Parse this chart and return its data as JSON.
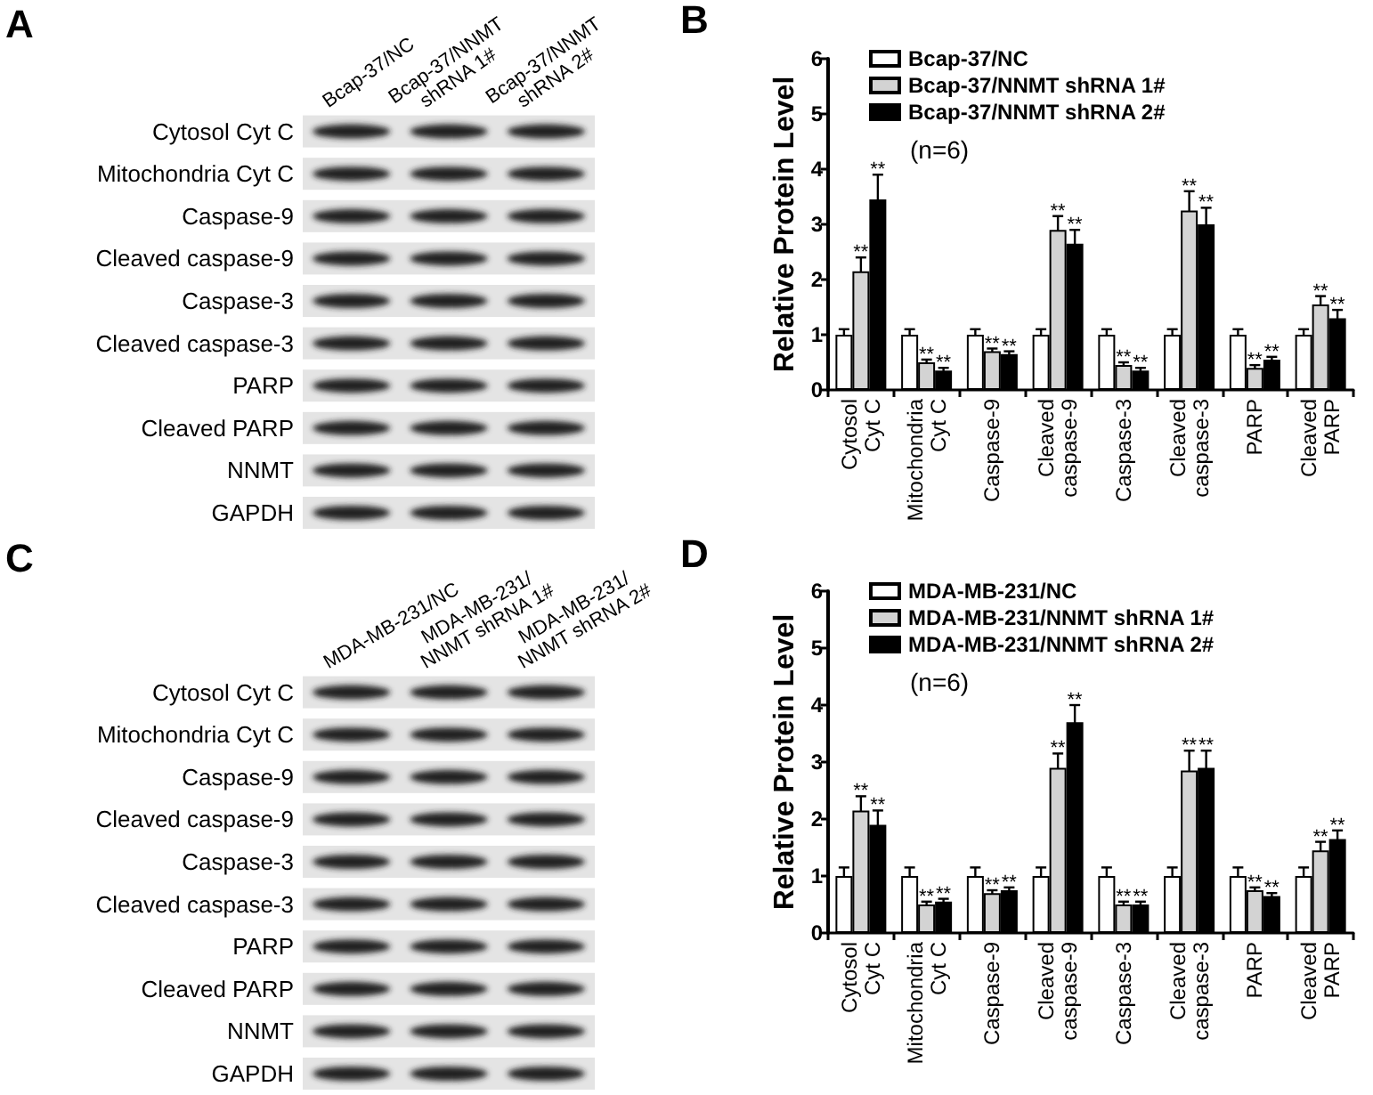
{
  "chart_data": [
    {
      "type": "other",
      "title": "A",
      "categories": [
        "Bcap-37/NC",
        "Bcap-37/NNMT shRNA 1#",
        "Bcap-37/NNMT shRNA 2#"
      ],
      "y_categories": [
        "Cytosol Cyt C",
        "Mitochondria Cyt C",
        "Caspase-9",
        "Cleaved caspase-9",
        "Caspase-3",
        "Cleaved caspase-3",
        "PARP",
        "Cleaved PARP",
        "NNMT",
        "GAPDH"
      ]
    },
    {
      "type": "bar",
      "title": "B",
      "ylabel": "Relative Protein Level",
      "categories": [
        "Cytosol Cyt C",
        "Mitochondria Cyt C",
        "Caspase-9",
        "Cleaved caspase-9",
        "Caspase-3",
        "Cleaved caspase-3",
        "PARP",
        "Cleaved PARP"
      ],
      "series": [
        {
          "name": "Bcap-37/NC",
          "color": "#ffffff",
          "values": [
            1,
            1,
            1,
            1,
            1,
            1,
            1,
            1
          ],
          "errors": [
            0.1,
            0.1,
            0.1,
            0.1,
            0.1,
            0.1,
            0.1,
            0.1
          ]
        },
        {
          "name": "Bcap-37/NNMT shRNA 1#",
          "color": "#d3d3d3",
          "values": [
            2.15,
            0.5,
            0.7,
            2.9,
            0.45,
            3.25,
            0.4,
            1.55
          ],
          "errors": [
            0.25,
            0.05,
            0.05,
            0.25,
            0.05,
            0.35,
            0.05,
            0.15
          ],
          "value_labels": [
            "**",
            "**",
            "**",
            "**",
            "**",
            "**",
            "**",
            "**"
          ]
        },
        {
          "name": "Bcap-37/NNMT shRNA 2#",
          "color": "#000000",
          "values": [
            3.45,
            0.35,
            0.65,
            2.65,
            0.35,
            3.0,
            0.55,
            1.3
          ],
          "errors": [
            0.45,
            0.05,
            0.05,
            0.25,
            0.05,
            0.3,
            0.05,
            0.15
          ],
          "value_labels": [
            "**",
            "**",
            "**",
            "**",
            "**",
            "**",
            "**",
            "**"
          ]
        }
      ],
      "ylim": [
        0,
        6
      ],
      "yticks": [
        0,
        1,
        2,
        3,
        4,
        5,
        6
      ],
      "grid": false,
      "legend": "top left",
      "annotations": [
        "(n=6)"
      ]
    },
    {
      "type": "other",
      "title": "C",
      "categories": [
        "MDA-MB-231/NC",
        "MDA-MB-231/NNMT shRNA 1#",
        "MDA-MB-231/NNMT shRNA 2#"
      ],
      "y_categories": [
        "Cytosol Cyt C",
        "Mitochondria Cyt C",
        "Caspase-9",
        "Cleaved caspase-9",
        "Caspase-3",
        "Cleaved caspase-3",
        "PARP",
        "Cleaved PARP",
        "NNMT",
        "GAPDH"
      ]
    },
    {
      "type": "bar",
      "title": "D",
      "ylabel": "Relative Protein Level",
      "categories": [
        "Cytosol Cyt C",
        "Mitochondria Cyt C",
        "Caspase-9",
        "Cleaved caspase-9",
        "Caspase-3",
        "Cleaved caspase-3",
        "PARP",
        "Cleaved PARP"
      ],
      "series": [
        {
          "name": "MDA-MB-231/NC",
          "color": "#ffffff",
          "values": [
            1,
            1,
            1,
            1,
            1,
            1,
            1,
            1
          ],
          "errors": [
            0.15,
            0.15,
            0.15,
            0.15,
            0.15,
            0.15,
            0.15,
            0.15
          ]
        },
        {
          "name": "MDA-MB-231/NNMT shRNA 1#",
          "color": "#d3d3d3",
          "values": [
            2.15,
            0.5,
            0.7,
            2.9,
            0.5,
            2.85,
            0.75,
            1.45
          ],
          "errors": [
            0.25,
            0.05,
            0.05,
            0.25,
            0.05,
            0.35,
            0.05,
            0.15
          ],
          "value_labels": [
            "**",
            "**",
            "**",
            "**",
            "**",
            "**",
            "**",
            "**"
          ]
        },
        {
          "name": "MDA-MB-231/NNMT shRNA 2#",
          "color": "#000000",
          "values": [
            1.9,
            0.55,
            0.75,
            3.7,
            0.5,
            2.9,
            0.65,
            1.65
          ],
          "errors": [
            0.25,
            0.05,
            0.05,
            0.3,
            0.05,
            0.3,
            0.05,
            0.15
          ],
          "value_labels": [
            "**",
            "**",
            "**",
            "**",
            "**",
            "**",
            "**",
            "**"
          ]
        }
      ],
      "ylim": [
        0,
        6
      ],
      "yticks": [
        0,
        1,
        2,
        3,
        4,
        5,
        6
      ],
      "grid": false,
      "legend": "top left",
      "annotations": [
        "(n=6)"
      ]
    }
  ]
}
